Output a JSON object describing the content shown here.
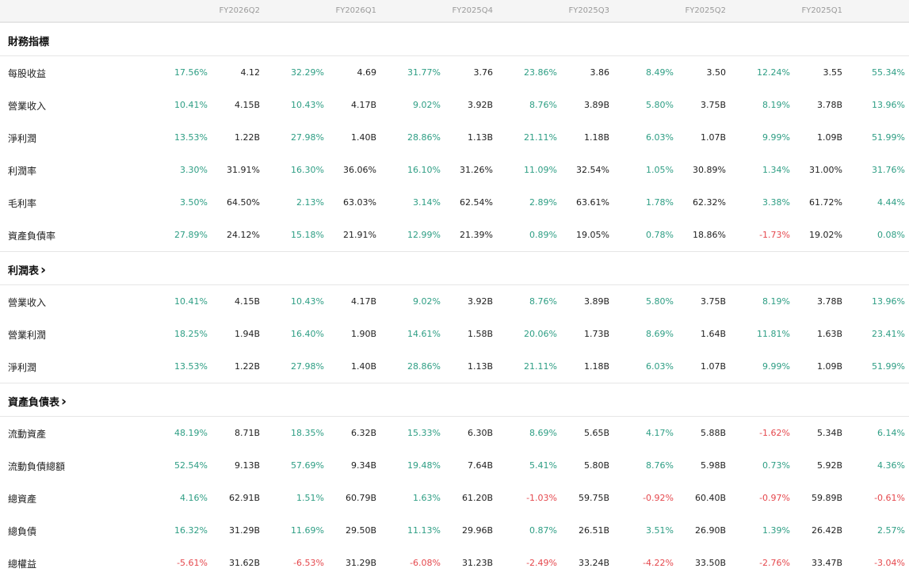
{
  "columns": [
    "FY2026Q2",
    "FY2026Q1",
    "FY2025Q4",
    "FY2025Q3",
    "FY2025Q2",
    "FY2025Q1"
  ],
  "colors": {
    "positive": "#2e9e84",
    "negative": "#e5484d"
  },
  "sections": [
    {
      "title": "財務指標",
      "link": false,
      "rows": [
        {
          "label": "每股收益",
          "cells": [
            [
              "17.56%",
              "4.12"
            ],
            [
              "32.29%",
              "4.69"
            ],
            [
              "31.77%",
              "3.76"
            ],
            [
              "23.86%",
              "3.86"
            ],
            [
              "8.49%",
              "3.50"
            ],
            [
              "12.24%",
              "3.55"
            ],
            [
              "55.34%",
              ""
            ]
          ]
        },
        {
          "label": "營業收入",
          "cells": [
            [
              "10.41%",
              "4.15B"
            ],
            [
              "10.43%",
              "4.17B"
            ],
            [
              "9.02%",
              "3.92B"
            ],
            [
              "8.76%",
              "3.89B"
            ],
            [
              "5.80%",
              "3.75B"
            ],
            [
              "8.19%",
              "3.78B"
            ],
            [
              "13.96%",
              ""
            ]
          ]
        },
        {
          "label": "淨利潤",
          "cells": [
            [
              "13.53%",
              "1.22B"
            ],
            [
              "27.98%",
              "1.40B"
            ],
            [
              "28.86%",
              "1.13B"
            ],
            [
              "21.11%",
              "1.18B"
            ],
            [
              "6.03%",
              "1.07B"
            ],
            [
              "9.99%",
              "1.09B"
            ],
            [
              "51.99%",
              ""
            ]
          ]
        },
        {
          "label": "利潤率",
          "cells": [
            [
              "3.30%",
              "31.91%"
            ],
            [
              "16.30%",
              "36.06%"
            ],
            [
              "16.10%",
              "31.26%"
            ],
            [
              "11.09%",
              "32.54%"
            ],
            [
              "1.05%",
              "30.89%"
            ],
            [
              "1.34%",
              "31.00%"
            ],
            [
              "31.76%",
              ""
            ]
          ]
        },
        {
          "label": "毛利率",
          "cells": [
            [
              "3.50%",
              "64.50%"
            ],
            [
              "2.13%",
              "63.03%"
            ],
            [
              "3.14%",
              "62.54%"
            ],
            [
              "2.89%",
              "63.61%"
            ],
            [
              "1.78%",
              "62.32%"
            ],
            [
              "3.38%",
              "61.72%"
            ],
            [
              "4.44%",
              ""
            ]
          ]
        },
        {
          "label": "資產負債率",
          "cells": [
            [
              "27.89%",
              "24.12%"
            ],
            [
              "15.18%",
              "21.91%"
            ],
            [
              "12.99%",
              "21.39%"
            ],
            [
              "0.89%",
              "19.05%"
            ],
            [
              "0.78%",
              "18.86%"
            ],
            [
              "-1.73%",
              "19.02%"
            ],
            [
              "0.08%",
              ""
            ]
          ]
        }
      ]
    },
    {
      "title": "利潤表",
      "link": true,
      "rows": [
        {
          "label": "營業收入",
          "cells": [
            [
              "10.41%",
              "4.15B"
            ],
            [
              "10.43%",
              "4.17B"
            ],
            [
              "9.02%",
              "3.92B"
            ],
            [
              "8.76%",
              "3.89B"
            ],
            [
              "5.80%",
              "3.75B"
            ],
            [
              "8.19%",
              "3.78B"
            ],
            [
              "13.96%",
              ""
            ]
          ]
        },
        {
          "label": "營業利潤",
          "cells": [
            [
              "18.25%",
              "1.94B"
            ],
            [
              "16.40%",
              "1.90B"
            ],
            [
              "14.61%",
              "1.58B"
            ],
            [
              "20.06%",
              "1.73B"
            ],
            [
              "8.69%",
              "1.64B"
            ],
            [
              "11.81%",
              "1.63B"
            ],
            [
              "23.41%",
              ""
            ]
          ]
        },
        {
          "label": "淨利潤",
          "cells": [
            [
              "13.53%",
              "1.22B"
            ],
            [
              "27.98%",
              "1.40B"
            ],
            [
              "28.86%",
              "1.13B"
            ],
            [
              "21.11%",
              "1.18B"
            ],
            [
              "6.03%",
              "1.07B"
            ],
            [
              "9.99%",
              "1.09B"
            ],
            [
              "51.99%",
              ""
            ]
          ]
        }
      ]
    },
    {
      "title": "資產負債表",
      "link": true,
      "rows": [
        {
          "label": "流動資產",
          "cells": [
            [
              "48.19%",
              "8.71B"
            ],
            [
              "18.35%",
              "6.32B"
            ],
            [
              "15.33%",
              "6.30B"
            ],
            [
              "8.69%",
              "5.65B"
            ],
            [
              "4.17%",
              "5.88B"
            ],
            [
              "-1.62%",
              "5.34B"
            ],
            [
              "6.14%",
              ""
            ]
          ]
        },
        {
          "label": "流動負債總額",
          "cells": [
            [
              "52.54%",
              "9.13B"
            ],
            [
              "57.69%",
              "9.34B"
            ],
            [
              "19.48%",
              "7.64B"
            ],
            [
              "5.41%",
              "5.80B"
            ],
            [
              "8.76%",
              "5.98B"
            ],
            [
              "0.73%",
              "5.92B"
            ],
            [
              "4.36%",
              ""
            ]
          ]
        },
        {
          "label": "總資產",
          "cells": [
            [
              "4.16%",
              "62.91B"
            ],
            [
              "1.51%",
              "60.79B"
            ],
            [
              "1.63%",
              "61.20B"
            ],
            [
              "-1.03%",
              "59.75B"
            ],
            [
              "-0.92%",
              "60.40B"
            ],
            [
              "-0.97%",
              "59.89B"
            ],
            [
              "-0.61%",
              ""
            ]
          ]
        },
        {
          "label": "總負債",
          "cells": [
            [
              "16.32%",
              "31.29B"
            ],
            [
              "11.69%",
              "29.50B"
            ],
            [
              "11.13%",
              "29.96B"
            ],
            [
              "0.87%",
              "26.51B"
            ],
            [
              "3.51%",
              "26.90B"
            ],
            [
              "1.39%",
              "26.42B"
            ],
            [
              "2.57%",
              ""
            ]
          ]
        },
        {
          "label": "總權益",
          "cells": [
            [
              "-5.61%",
              "31.62B"
            ],
            [
              "-6.53%",
              "31.29B"
            ],
            [
              "-6.08%",
              "31.23B"
            ],
            [
              "-2.49%",
              "33.24B"
            ],
            [
              "-4.22%",
              "33.50B"
            ],
            [
              "-2.76%",
              "33.47B"
            ],
            [
              "-3.04%",
              ""
            ]
          ]
        }
      ]
    }
  ]
}
